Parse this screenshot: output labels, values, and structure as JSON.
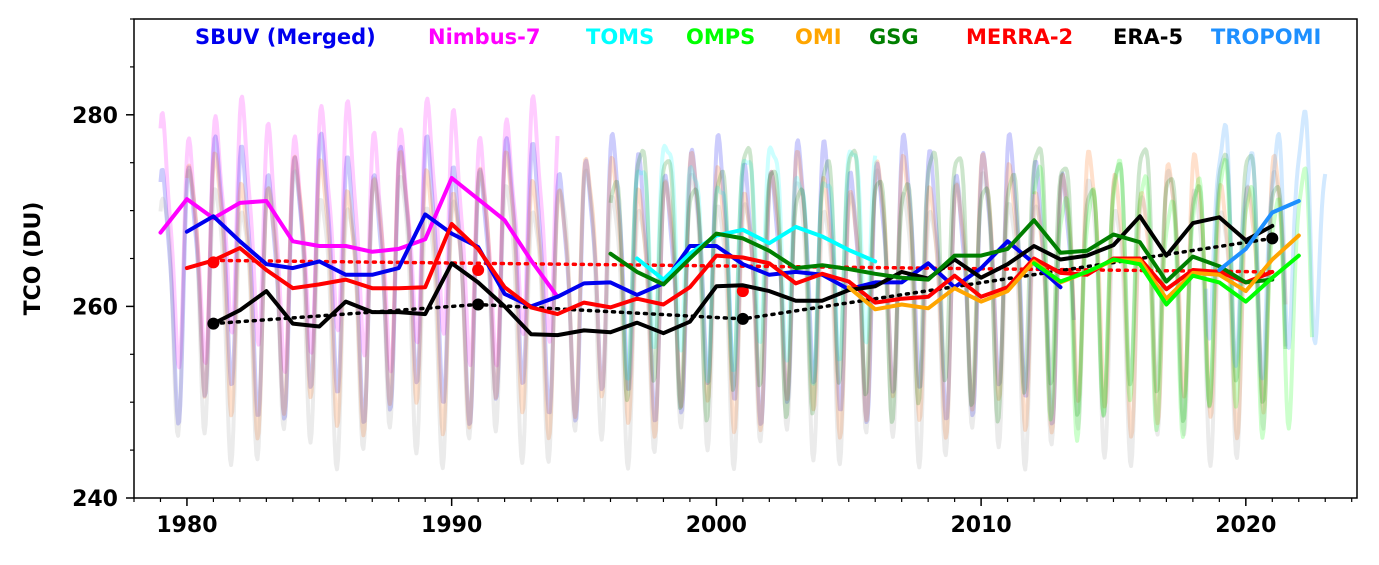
{
  "chart_data": {
    "type": "line",
    "title": "",
    "xlabel": "",
    "ylabel": "TCO (DU)",
    "xlim": [
      1978,
      2024.2
    ],
    "ylim": [
      240,
      290
    ],
    "x_ticks": [
      1980,
      1990,
      2000,
      2010,
      2020
    ],
    "x_tick_labels": [
      "1980",
      "1990",
      "2000",
      "2010",
      "2020"
    ],
    "y_ticks": [
      240,
      260,
      280
    ],
    "y_tick_labels": [
      "240",
      "260",
      "280"
    ],
    "legend_position": "top",
    "legend": [
      {
        "name": "SBUV (Merged)",
        "color": "#0000ee"
      },
      {
        "name": "Nimbus-7",
        "color": "#ff00ff"
      },
      {
        "name": "TOMS",
        "color": "#00ffff"
      },
      {
        "name": "OMPS",
        "color": "#00ff00"
      },
      {
        "name": "OMI",
        "color": "#ffa500"
      },
      {
        "name": "GSG",
        "color": "#007f00"
      },
      {
        "name": "MERRA-2",
        "color": "#ff0000"
      },
      {
        "name": "ERA-5",
        "color": "#000000"
      },
      {
        "name": "TROPOMI",
        "color": "#1e90ff"
      }
    ],
    "series": [
      {
        "name": "Nimbus-7",
        "color": "#ff00ff",
        "x": [
          1979,
          1980,
          1981,
          1982,
          1983,
          1984,
          1985,
          1986,
          1987,
          1988,
          1989,
          1990,
          1991,
          1992,
          1993,
          1994
        ],
        "values": [
          267.7,
          271.2,
          269.2,
          270.8,
          271.0,
          266.8,
          266.3,
          266.3,
          265.7,
          266.0,
          267.0,
          273.4,
          271.2,
          269.0,
          264.8,
          261.0
        ]
      },
      {
        "name": "SBUV (Merged)",
        "color": "#0000ee",
        "x": [
          1980,
          1981,
          1982,
          1983,
          1984,
          1985,
          1986,
          1987,
          1988,
          1989,
          1990,
          1991,
          1992,
          1993,
          1994,
          1995,
          1996,
          1997,
          1998,
          1999,
          2000,
          2001,
          2002,
          2003,
          2004,
          2005,
          2006,
          2007,
          2008,
          2009,
          2010,
          2011,
          2012,
          2013
        ],
        "values": [
          267.8,
          269.4,
          266.8,
          264.4,
          264.0,
          264.7,
          263.3,
          263.3,
          264.0,
          269.6,
          267.6,
          266.2,
          261.3,
          260.0,
          261.0,
          262.4,
          262.5,
          261.2,
          262.4,
          266.3,
          266.3,
          264.4,
          263.3,
          263.6,
          263.3,
          261.8,
          262.5,
          262.5,
          264.5,
          262.0,
          264.0,
          266.8,
          264.5,
          262.0
        ]
      },
      {
        "name": "MERRA-2",
        "color": "#ff0000",
        "x": [
          1980,
          1981,
          1982,
          1983,
          1984,
          1985,
          1986,
          1987,
          1988,
          1989,
          1990,
          1991,
          1992,
          1993,
          1994,
          1995,
          1996,
          1997,
          1998,
          1999,
          2000,
          2001,
          2002,
          2003,
          2004,
          2005,
          2006,
          2007,
          2008,
          2009,
          2010,
          2011,
          2012,
          2013,
          2014,
          2015,
          2016,
          2017,
          2018,
          2019,
          2020,
          2021
        ],
        "values": [
          264.0,
          264.8,
          266.1,
          263.8,
          261.9,
          262.3,
          262.8,
          261.9,
          261.9,
          262.0,
          268.6,
          266.0,
          262.0,
          259.9,
          259.2,
          260.4,
          259.9,
          260.8,
          260.2,
          262.0,
          265.3,
          265.1,
          264.5,
          262.4,
          263.4,
          262.6,
          260.4,
          260.8,
          261.0,
          263.2,
          261.0,
          262.0,
          265.0,
          263.5,
          263.3,
          265.0,
          265.0,
          261.8,
          263.8,
          263.6,
          262.5,
          263.6
        ]
      },
      {
        "name": "ERA-5",
        "color": "#000000",
        "x": [
          1981,
          1982,
          1983,
          1984,
          1985,
          1986,
          1987,
          1988,
          1989,
          1990,
          1991,
          1992,
          1993,
          1994,
          1995,
          1996,
          1997,
          1998,
          1999,
          2000,
          2001,
          2002,
          2003,
          2004,
          2005,
          2006,
          2007,
          2008,
          2009,
          2010,
          2011,
          2012,
          2013,
          2014,
          2015,
          2016,
          2017,
          2018,
          2019,
          2020,
          2021
        ],
        "values": [
          258.2,
          259.6,
          261.6,
          258.2,
          257.9,
          260.5,
          259.4,
          259.4,
          259.2,
          264.5,
          262.5,
          260.0,
          257.1,
          257.0,
          257.5,
          257.3,
          258.3,
          257.2,
          258.4,
          262.1,
          262.2,
          261.6,
          260.6,
          260.6,
          261.7,
          262.1,
          263.6,
          262.9,
          264.9,
          263.0,
          264.4,
          266.3,
          264.9,
          265.3,
          266.4,
          269.4,
          265.3,
          268.7,
          269.3,
          266.9,
          268.4
        ]
      },
      {
        "name": "TOMS",
        "color": "#00ffff",
        "x": [
          1997,
          1998,
          1999,
          2000,
          2001,
          2002,
          2003,
          2004,
          2005,
          2006
        ],
        "values": [
          265.0,
          262.8,
          265.5,
          267.4,
          268.0,
          266.6,
          268.3,
          267.3,
          265.9,
          264.7
        ]
      },
      {
        "name": "GSG",
        "color": "#007f00",
        "x": [
          1996,
          1997,
          1998,
          1999,
          2000,
          2001,
          2002,
          2003,
          2004,
          2005,
          2006,
          2007,
          2008,
          2009,
          2010,
          2011,
          2012,
          2013,
          2014,
          2015,
          2016,
          2017,
          2018,
          2019,
          2020,
          2021
        ],
        "values": [
          265.5,
          263.6,
          262.3,
          265.0,
          267.6,
          267.1,
          265.8,
          264.0,
          264.3,
          263.9,
          263.4,
          263.0,
          262.8,
          265.3,
          265.3,
          266.0,
          269.0,
          265.6,
          265.8,
          267.5,
          266.7,
          262.6,
          265.2,
          264.2,
          262.5,
          262.8
        ]
      },
      {
        "name": "OMI",
        "color": "#ffa500",
        "x": [
          2005,
          2006,
          2007,
          2008,
          2009,
          2010,
          2011,
          2012,
          2013,
          2014,
          2015,
          2016,
          2017,
          2018,
          2019,
          2020,
          2021,
          2022
        ],
        "values": [
          262.0,
          259.7,
          260.2,
          259.8,
          261.9,
          260.5,
          261.6,
          264.7,
          262.5,
          263.6,
          264.8,
          264.8,
          260.8,
          263.5,
          263.3,
          261.6,
          264.9,
          267.4
        ]
      },
      {
        "name": "OMPS",
        "color": "#00ff00",
        "x": [
          2012,
          2013,
          2014,
          2015,
          2016,
          2017,
          2018,
          2019,
          2020,
          2021,
          2022
        ],
        "values": [
          264.5,
          262.6,
          263.6,
          264.9,
          264.4,
          260.2,
          263.2,
          262.5,
          260.5,
          263.0,
          265.3
        ]
      },
      {
        "name": "TROPOMI",
        "color": "#1e90ff",
        "x": [
          2019,
          2020,
          2021,
          2022
        ],
        "values": [
          263.8,
          266.0,
          269.8,
          271.0
        ]
      }
    ],
    "trends": [
      {
        "name": "MERRA-2 trend",
        "color": "#ff0000",
        "x": [
          1981,
          2021
        ],
        "values": [
          264.8,
          263.6
        ],
        "markers": [
          {
            "x": 1981,
            "y": 264.6
          },
          {
            "x": 1991,
            "y": 263.8
          },
          {
            "x": 2001,
            "y": 261.6
          }
        ]
      },
      {
        "name": "ERA-5 trend",
        "color": "#000000",
        "x": [
          1981,
          1991,
          2001,
          2021
        ],
        "values": [
          258.2,
          260.2,
          258.7,
          267.1
        ],
        "markers": [
          {
            "x": 1981,
            "y": 258.2
          },
          {
            "x": 1991,
            "y": 260.2
          },
          {
            "x": 2001,
            "y": 258.7
          },
          {
            "x": 2021,
            "y": 267.1
          }
        ]
      }
    ],
    "monthly_background": [
      {
        "name": "Nimbus-7 monthly",
        "color": "#ff00ff",
        "start": 1979.0,
        "end": 1994.0,
        "mean": 268,
        "amp": 11
      },
      {
        "name": "SBUV monthly",
        "color": "#0000ee",
        "start": 1979.0,
        "end": 2013.5,
        "mean": 264,
        "amp": 12
      },
      {
        "name": "MERRA-2 monthly",
        "color": "#ff6600",
        "start": 1980.0,
        "end": 2021.5,
        "mean": 263,
        "amp": 12
      },
      {
        "name": "ERA-5 monthly",
        "color": "#999999",
        "start": 1979.0,
        "end": 2021.5,
        "mean": 261,
        "amp": 13
      },
      {
        "name": "TOMS monthly",
        "color": "#00ffff",
        "start": 1996.5,
        "end": 2006.0,
        "mean": 267,
        "amp": 10
      },
      {
        "name": "GSG monthly",
        "color": "#007f00",
        "start": 1996.0,
        "end": 2021.5,
        "mean": 265,
        "amp": 12
      },
      {
        "name": "OMPS monthly",
        "color": "#00ff00",
        "start": 2012.0,
        "end": 2022.5,
        "mean": 263,
        "amp": 12
      },
      {
        "name": "TROPOMI monthly",
        "color": "#1e90ff",
        "start": 2018.5,
        "end": 2023.0,
        "mean": 268,
        "amp": 11
      }
    ]
  }
}
